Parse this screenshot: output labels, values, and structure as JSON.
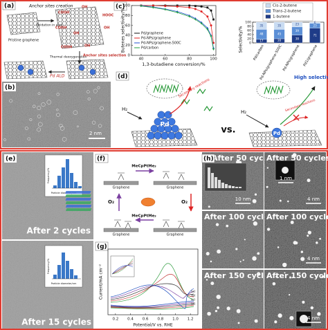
{
  "panel_a": {
    "label": "(a)",
    "anchor_creation": "Anchor sites creation",
    "oxidation": "Oxidation in acid",
    "pristine": "Pristine graphene",
    "deoxygenation": "Thermal deoxygenation",
    "selection": "Anchor sites selection",
    "ald": "Pd ALD",
    "groups": [
      "COOH",
      "OH",
      "HOOC",
      "COOH",
      "OH",
      "OH",
      "OH",
      "COOH"
    ]
  },
  "panel_b": {
    "label": "(b)",
    "scale": "2 nm"
  },
  "panel_c": {
    "label": "(c)",
    "line_chart": {
      "type": "line",
      "y_label": "Butenes selectivity/%",
      "x_label": "1,3-butadiene conversion/%",
      "xlim": [
        32,
        102
      ],
      "ylim": [
        0,
        100
      ],
      "xticks": [
        40,
        60,
        80,
        100
      ],
      "yticks": [
        0,
        20,
        40,
        60,
        80,
        100
      ],
      "x": [
        40,
        50,
        60,
        70,
        80,
        85,
        90,
        95,
        98,
        100
      ],
      "series": [
        {
          "name": "Pd/graphene",
          "color": "#111111",
          "values": [
            100,
            100,
            100,
            100,
            100,
            99,
            98,
            96,
            90,
            72
          ]
        },
        {
          "name": "Pd-NPs/graphene",
          "color": "#e02020",
          "values": [
            100,
            100,
            99,
            98,
            96,
            93,
            88,
            78,
            60,
            25
          ]
        },
        {
          "name": "Pd-NPs/graphene-500C",
          "color": "#2050d0",
          "values": [
            100,
            97,
            93,
            88,
            80,
            74,
            66,
            55,
            40,
            15
          ]
        },
        {
          "name": "Pd/carbon",
          "color": "#20a040",
          "values": [
            99,
            96,
            92,
            86,
            78,
            72,
            64,
            52,
            38,
            12
          ]
        }
      ]
    },
    "bar_chart": {
      "type": "bar",
      "y_label": "Selectivity/%",
      "ylim": [
        0,
        100
      ],
      "yticks": [
        0,
        20,
        40,
        60,
        80,
        100
      ],
      "categories": [
        "Pd/carbon",
        "Pd-NPs/graphene-500C",
        "Pd-NPs/graphene",
        "Pd1/graphene"
      ],
      "series": [
        {
          "name": "1-butene",
          "color": "#1f3c88",
          "values": [
            17,
            20,
            38,
            71
          ]
        },
        {
          "name": "Trans-2-butene",
          "color": "#5b8fd6",
          "values": [
            48,
            45,
            39,
            23
          ]
        },
        {
          "name": "Cis-2-butene",
          "color": "#c9dcf2",
          "values": [
            35,
            35,
            23,
            6
          ]
        }
      ]
    }
  },
  "panel_d": {
    "label": "(d)",
    "h2_left": "H₂",
    "secondary_left": "Secondary reactions",
    "pd_left": "Pd",
    "vs": "vs.",
    "high_selectivity": "High selectivity",
    "h2_right": "H₂",
    "secondary_right": "Secondary reactions",
    "pd_right": "Pd"
  },
  "panel_e": {
    "label": "(e)",
    "top_caption": "After 2 cycles",
    "bottom_caption": "After 15 cycles",
    "hist_x_label": "Particle diameter/nm",
    "hist_y_label": "Frequency/%"
  },
  "panel_f": {
    "label": "(f)",
    "precursor_top": "MeCpPtMe₃",
    "precursor_bottom": "MeCpPtMe₃",
    "o2_left": "O₂",
    "o2_right": "O₂",
    "graphene_labels": [
      "Graphene",
      "Graphene",
      "Graphene",
      "Graphene"
    ]
  },
  "panel_g": {
    "label": "(g)",
    "x_label": "Potential/V vs. RHE",
    "y_label": "Current/mA cm⁻²",
    "xlim": [
      0.1,
      1.3
    ],
    "xticks": [
      0.2,
      0.4,
      0.6,
      0.8,
      {
        "value": 1.0,
        "label": "1.0"
      },
      1.2
    ],
    "curve_labels": [
      "(a)",
      "(b)",
      "(c)",
      "(d)"
    ]
  },
  "panel_h": {
    "label": "(h)",
    "captions": [
      "After 50 cycles",
      "After 50 cycles",
      "After 100 cycles",
      "After 100 cycles",
      "After 150 cycles",
      "After 150 cycles"
    ],
    "scales": [
      "10 nm",
      "4 nm",
      "1 nm",
      "4 nm",
      "4 nm"
    ]
  }
}
